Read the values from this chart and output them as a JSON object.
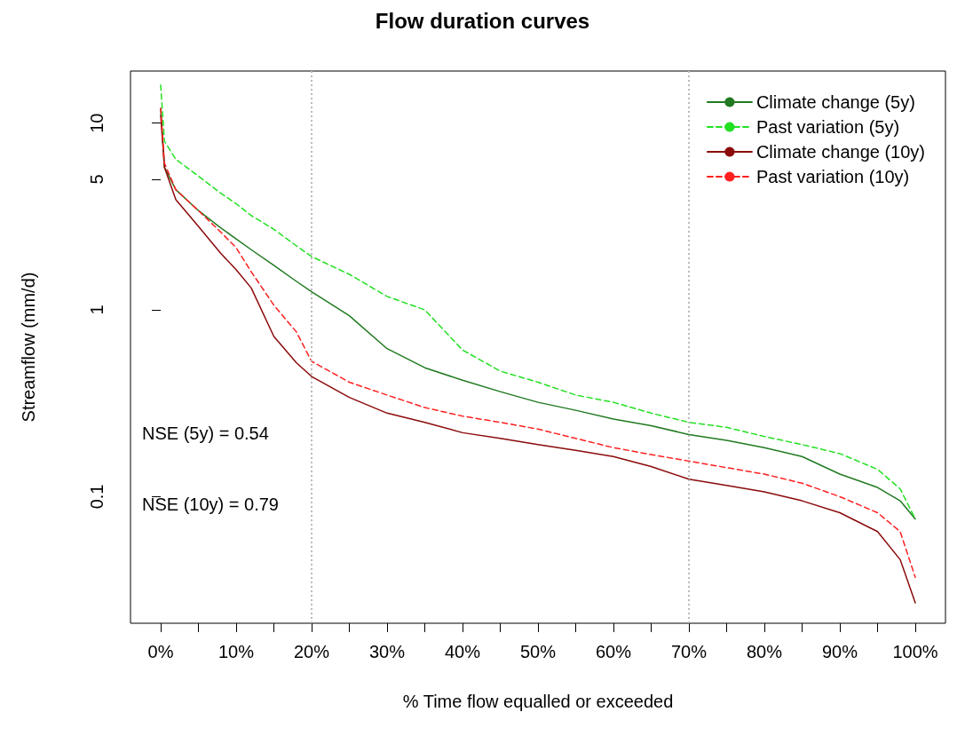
{
  "chart_data": {
    "type": "line",
    "title": "Flow duration curves",
    "xlabel": "% Time flow equalled or exceeded",
    "ylabel": "Streamflow (mm/d)",
    "x": [
      0,
      0.5,
      2,
      5,
      8,
      10,
      12,
      15,
      18,
      20,
      25,
      30,
      35,
      40,
      45,
      50,
      55,
      60,
      65,
      70,
      75,
      80,
      85,
      90,
      95,
      98,
      100
    ],
    "series": [
      {
        "name": "Climate change (5y)",
        "color": "#217a21",
        "line_style": "solid",
        "values": [
          12,
          5.8,
          4.4,
          3.4,
          2.74,
          2.4,
          2.1,
          1.73,
          1.42,
          1.25,
          0.93,
          0.62,
          0.49,
          0.42,
          0.365,
          0.32,
          0.29,
          0.26,
          0.24,
          0.215,
          0.2,
          0.183,
          0.164,
          0.132,
          0.112,
          0.095,
          0.076
        ]
      },
      {
        "name": "Past variation (5y)",
        "color": "#22e022",
        "line_style": "dashed",
        "values": [
          16,
          8.0,
          6.4,
          5.2,
          4.2,
          3.7,
          3.2,
          2.7,
          2.2,
          1.93,
          1.55,
          1.18,
          1.0,
          0.61,
          0.47,
          0.41,
          0.35,
          0.32,
          0.28,
          0.25,
          0.235,
          0.21,
          0.19,
          0.17,
          0.14,
          0.11,
          0.076
        ]
      },
      {
        "name": "Climate change (10y)",
        "color": "#8b0a0a",
        "line_style": "solid",
        "values": [
          11,
          5.8,
          3.9,
          2.8,
          2.0,
          1.64,
          1.31,
          0.72,
          0.52,
          0.44,
          0.34,
          0.28,
          0.25,
          0.22,
          0.205,
          0.19,
          0.177,
          0.164,
          0.145,
          0.124,
          0.115,
          0.106,
          0.095,
          0.082,
          0.065,
          0.046,
          0.027
        ]
      },
      {
        "name": "Past variation (10y)",
        "color": "#ff2020",
        "line_style": "dashed",
        "values": [
          12,
          6.1,
          4.4,
          3.4,
          2.6,
          2.15,
          1.6,
          1.06,
          0.76,
          0.53,
          0.41,
          0.35,
          0.3,
          0.27,
          0.25,
          0.23,
          0.205,
          0.183,
          0.168,
          0.155,
          0.143,
          0.132,
          0.118,
          0.1,
          0.082,
          0.065,
          0.037
        ]
      }
    ],
    "xlim": [
      -4,
      104
    ],
    "xticks": [
      {
        "value": 0,
        "label": "0%"
      },
      {
        "value": 5,
        "label": null
      },
      {
        "value": 10,
        "label": "10%"
      },
      {
        "value": 15,
        "label": null
      },
      {
        "value": 20,
        "label": "20%"
      },
      {
        "value": 25,
        "label": null
      },
      {
        "value": 30,
        "label": "30%"
      },
      {
        "value": 35,
        "label": null
      },
      {
        "value": 40,
        "label": "40%"
      },
      {
        "value": 45,
        "label": null
      },
      {
        "value": 50,
        "label": "50%"
      },
      {
        "value": 55,
        "label": null
      },
      {
        "value": 60,
        "label": "60%"
      },
      {
        "value": 65,
        "label": null
      },
      {
        "value": 70,
        "label": "70%"
      },
      {
        "value": 75,
        "label": null
      },
      {
        "value": 80,
        "label": "80%"
      },
      {
        "value": 85,
        "label": null
      },
      {
        "value": 90,
        "label": "90%"
      },
      {
        "value": 95,
        "label": null
      },
      {
        "value": 100,
        "label": "100%"
      }
    ],
    "ylim": [
      0.021,
      19
    ],
    "yticks": [
      0.1,
      1,
      5,
      10
    ],
    "log": "y",
    "grid": false,
    "legend": "top right",
    "ref_lines": [
      {
        "axis": "x",
        "value": 20,
        "color": "#bbbbbb",
        "line_style": "dotted"
      },
      {
        "axis": "x",
        "value": 70,
        "color": "#bbbbbb",
        "line_style": "dotted"
      }
    ],
    "annotations": [
      "NSE (5y) = 0.54",
      "NSE (10y) = 0.79"
    ]
  }
}
